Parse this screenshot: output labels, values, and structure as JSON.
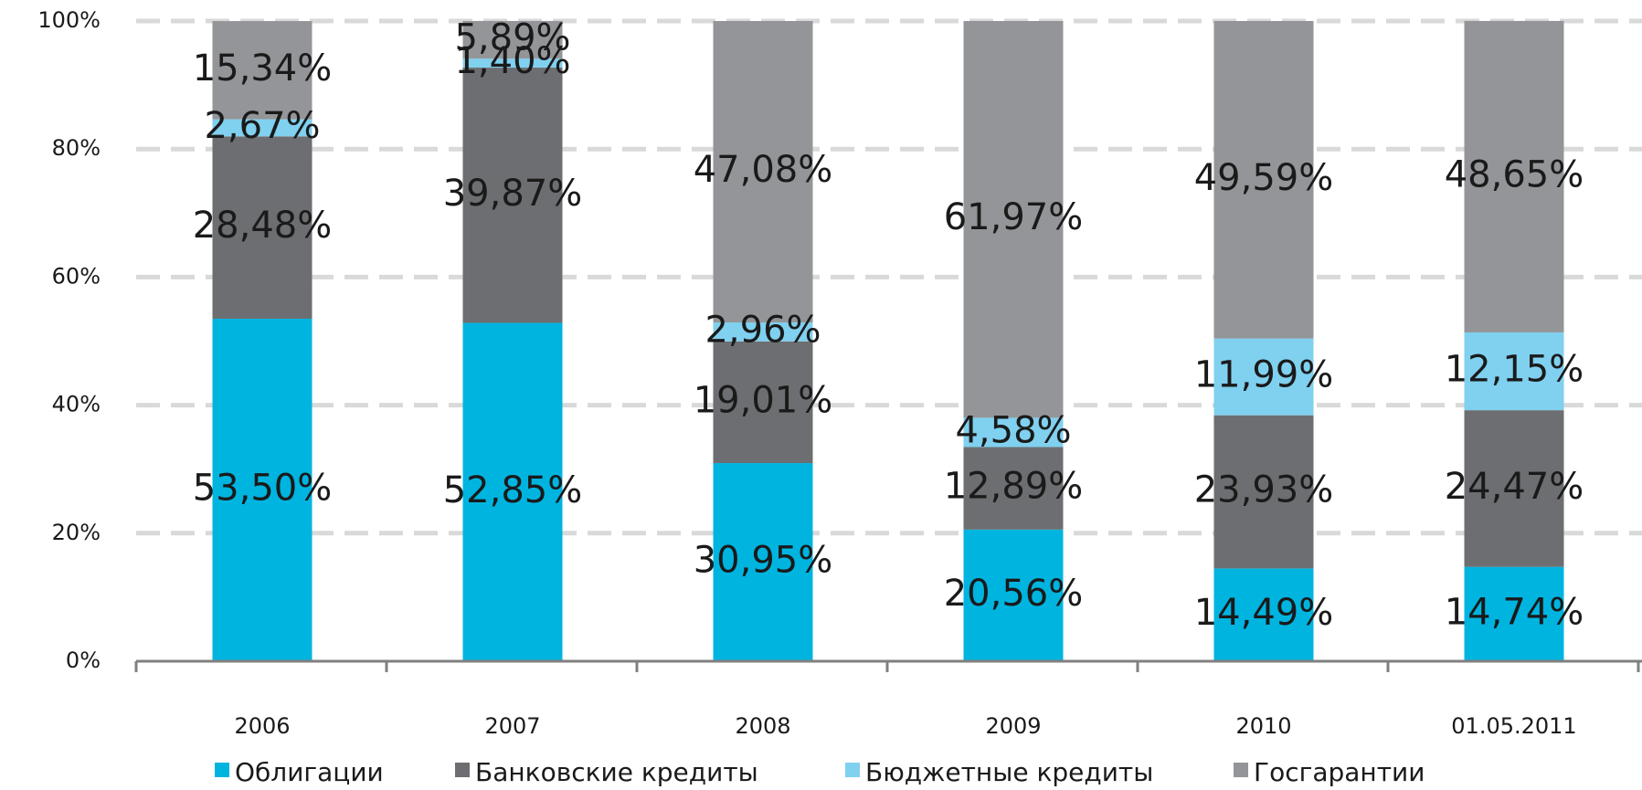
{
  "chart_data": {
    "type": "stacked_bar",
    "categories": [
      "2006",
      "2007",
      "2008",
      "2009",
      "2010",
      "01.05.2011"
    ],
    "series": [
      {
        "name": "Облигации",
        "color": "#00b4e0",
        "values": [
          53.5,
          52.85,
          30.95,
          20.56,
          14.49,
          14.74
        ],
        "value_labels": [
          "53,50%",
          "52,85%",
          "30,95%",
          "20,56%",
          "14,49%",
          "14,74%"
        ]
      },
      {
        "name": "Банковские кредиты",
        "color": "#6d6e71",
        "values": [
          28.48,
          39.87,
          19.01,
          12.89,
          23.93,
          24.47
        ],
        "value_labels": [
          "28,48%",
          "39,87%",
          "19,01%",
          "12,89%",
          "23,93%",
          "24,47%"
        ]
      },
      {
        "name": "Бюджетные кредиты",
        "color": "#80d0ef",
        "values": [
          2.67,
          1.4,
          2.96,
          4.58,
          11.99,
          12.15
        ],
        "value_labels": [
          "2,67%",
          "1,40%",
          "2,96%",
          "4,58%",
          "11,99%",
          "12,15%"
        ]
      },
      {
        "name": "Госгарантии",
        "color": "#939598",
        "values": [
          15.34,
          5.89,
          47.08,
          61.97,
          49.59,
          48.65
        ],
        "value_labels": [
          "15,34%",
          "5,89%",
          "47,08%",
          "61,97%",
          "49,59%",
          "48,65%"
        ]
      }
    ],
    "ylim": [
      0,
      100
    ],
    "yticks": [
      {
        "value": 0,
        "label": "0%"
      },
      {
        "value": 20,
        "label": "20%"
      },
      {
        "value": 40,
        "label": "40%"
      },
      {
        "value": 60,
        "label": "60%"
      },
      {
        "value": 80,
        "label": "80%"
      },
      {
        "value": 100,
        "label": "100%"
      }
    ],
    "grid": true,
    "legend": "bottom"
  }
}
